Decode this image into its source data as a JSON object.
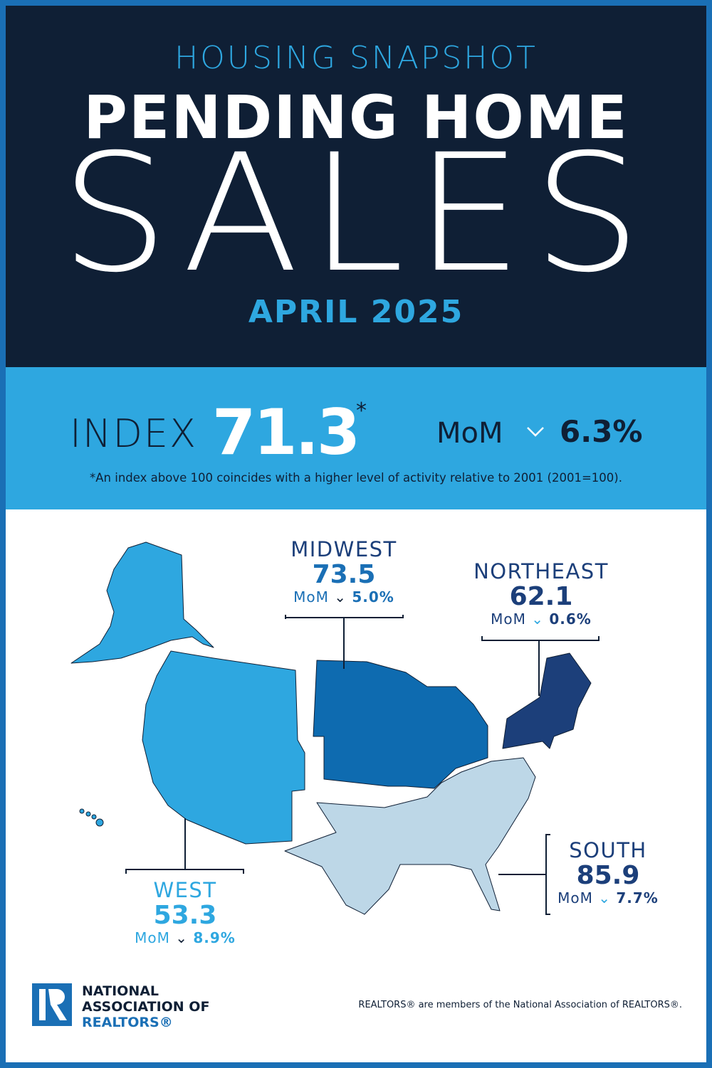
{
  "header": {
    "kicker": "HOUSING SNAPSHOT",
    "title_line1": "PENDING HOME",
    "title_line2": "SALES",
    "period": "APRIL 2025"
  },
  "national": {
    "index_label": "INDEX",
    "index_value": "71.3",
    "asterisk": "*",
    "mom_label": "MoM",
    "mom_direction": "down",
    "mom_arrow": "⌄",
    "mom_value": "6.3%",
    "footnote": "*An index above 100 coincides with a higher level of activity relative to 2001 (2001=100)."
  },
  "regions": [
    {
      "name": "MIDWEST",
      "index": "73.5",
      "mom_label": "MoM",
      "mom_direction": "down",
      "mom_value": "5.0%",
      "color": "#0e6bb0"
    },
    {
      "name": "NORTHEAST",
      "index": "62.1",
      "mom_label": "MoM",
      "mom_direction": "down",
      "mom_value": "0.6%",
      "color": "#1c3f7a"
    },
    {
      "name": "WEST",
      "index": "53.3",
      "mom_label": "MoM",
      "mom_direction": "down",
      "mom_value": "8.9%",
      "color": "#2ea7e0"
    },
    {
      "name": "SOUTH",
      "index": "85.9",
      "mom_label": "MoM",
      "mom_direction": "down",
      "mom_value": "7.7%",
      "color": "#bdd7e7"
    }
  ],
  "arrow": "⌄",
  "footer": {
    "logo_line1": "NATIONAL",
    "logo_line2": "ASSOCIATION OF",
    "logo_line3": "REALTORS®",
    "disclaimer": "REALTORS® are members of the National Association of REALTORS®."
  },
  "colors": {
    "navy": "#0f1f35",
    "accent": "#2ea7e0",
    "border": "#1a6fb5"
  }
}
